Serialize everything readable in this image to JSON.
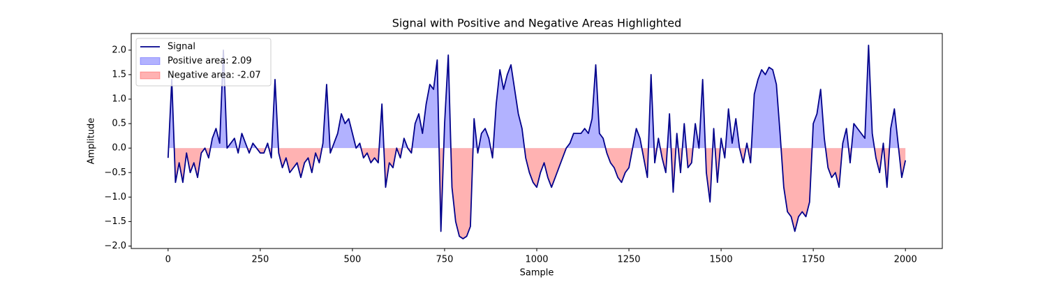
{
  "chart_data": {
    "type": "line",
    "title": "Signal with Positive and Negative Areas Highlighted",
    "x_label": "Sample",
    "y_label": "Amplitude",
    "x": [
      0,
      10,
      20,
      30,
      40,
      50,
      60,
      70,
      80,
      90,
      100,
      110,
      120,
      130,
      140,
      150,
      160,
      170,
      180,
      190,
      200,
      210,
      220,
      230,
      240,
      250,
      260,
      270,
      280,
      290,
      300,
      310,
      320,
      330,
      340,
      350,
      360,
      370,
      380,
      390,
      400,
      410,
      420,
      430,
      440,
      450,
      460,
      470,
      480,
      490,
      500,
      510,
      520,
      530,
      540,
      550,
      560,
      570,
      580,
      590,
      600,
      610,
      620,
      630,
      640,
      650,
      660,
      670,
      680,
      690,
      700,
      710,
      720,
      730,
      740,
      750,
      760,
      770,
      780,
      790,
      800,
      810,
      820,
      830,
      840,
      850,
      860,
      870,
      880,
      890,
      900,
      910,
      920,
      930,
      940,
      950,
      960,
      970,
      980,
      990,
      1000,
      1010,
      1020,
      1030,
      1040,
      1050,
      1060,
      1070,
      1080,
      1090,
      1100,
      1110,
      1120,
      1130,
      1140,
      1150,
      1160,
      1170,
      1180,
      1190,
      1200,
      1210,
      1220,
      1230,
      1240,
      1250,
      1260,
      1270,
      1280,
      1290,
      1300,
      1310,
      1320,
      1330,
      1340,
      1350,
      1360,
      1370,
      1380,
      1390,
      1400,
      1410,
      1420,
      1430,
      1440,
      1450,
      1460,
      1470,
      1480,
      1490,
      1500,
      1510,
      1520,
      1530,
      1540,
      1550,
      1560,
      1570,
      1580,
      1590,
      1600,
      1610,
      1620,
      1630,
      1640,
      1650,
      1660,
      1670,
      1680,
      1690,
      1700,
      1710,
      1720,
      1730,
      1740,
      1750,
      1760,
      1770,
      1780,
      1790,
      1800,
      1810,
      1820,
      1830,
      1840,
      1850,
      1860,
      1870,
      1880,
      1890,
      1900,
      1910,
      1920,
      1930,
      1940,
      1950,
      1960,
      1970,
      1980,
      1990,
      2000
    ],
    "series": [
      {
        "name": "Signal",
        "color": "#00008b",
        "values": [
          -0.2,
          1.4,
          -0.7,
          -0.3,
          -0.7,
          -0.1,
          -0.5,
          -0.3,
          -0.6,
          -0.1,
          0.0,
          -0.2,
          0.2,
          0.4,
          0.1,
          2.0,
          0.0,
          0.1,
          0.2,
          -0.1,
          0.3,
          0.1,
          -0.1,
          0.1,
          0.0,
          -0.1,
          -0.1,
          0.1,
          -0.2,
          1.4,
          -0.1,
          -0.4,
          -0.2,
          -0.5,
          -0.4,
          -0.3,
          -0.6,
          -0.3,
          -0.2,
          -0.5,
          -0.1,
          -0.3,
          0.1,
          1.3,
          -0.1,
          0.1,
          0.3,
          0.7,
          0.5,
          0.6,
          0.3,
          0.0,
          0.1,
          -0.2,
          -0.1,
          -0.3,
          -0.2,
          -0.3,
          0.9,
          -0.8,
          -0.3,
          -0.4,
          0.0,
          -0.2,
          0.2,
          0.0,
          -0.1,
          0.5,
          0.7,
          0.3,
          0.9,
          1.3,
          1.2,
          1.8,
          -1.7,
          0.5,
          1.9,
          -0.8,
          -1.5,
          -1.8,
          -1.85,
          -1.8,
          -1.6,
          0.6,
          -0.1,
          0.3,
          0.4,
          0.2,
          -0.2,
          0.9,
          1.6,
          1.2,
          1.5,
          1.7,
          1.2,
          0.7,
          0.4,
          -0.2,
          -0.5,
          -0.7,
          -0.8,
          -0.5,
          -0.3,
          -0.6,
          -0.8,
          -0.6,
          -0.4,
          -0.2,
          0.0,
          0.1,
          0.3,
          0.3,
          0.3,
          0.4,
          0.3,
          0.6,
          1.7,
          0.3,
          0.2,
          -0.1,
          -0.3,
          -0.4,
          -0.6,
          -0.7,
          -0.5,
          -0.4,
          0.0,
          0.4,
          0.2,
          -0.2,
          -0.6,
          1.5,
          -0.3,
          0.2,
          -0.2,
          -0.5,
          0.7,
          -0.9,
          0.3,
          -0.5,
          0.5,
          -0.4,
          -0.3,
          0.5,
          0.0,
          1.4,
          -0.5,
          -1.1,
          0.4,
          -0.7,
          0.2,
          -0.2,
          0.8,
          0.1,
          0.6,
          0.0,
          -0.3,
          0.1,
          -0.3,
          1.1,
          1.4,
          1.6,
          1.5,
          1.65,
          1.6,
          1.3,
          0.3,
          -0.8,
          -1.3,
          -1.4,
          -1.7,
          -1.4,
          -1.3,
          -1.4,
          -1.1,
          0.5,
          0.7,
          1.2,
          0.2,
          -0.4,
          -0.6,
          -0.5,
          -0.8,
          0.1,
          0.4,
          -0.3,
          0.5,
          0.4,
          0.3,
          0.2,
          2.1,
          0.3,
          -0.2,
          -0.5,
          0.1,
          -0.8,
          0.4,
          0.8,
          0.1,
          -0.6,
          -0.25
        ]
      }
    ],
    "fills": [
      {
        "name": "Positive area: 2.09",
        "color": "#0000ff",
        "side": "positive"
      },
      {
        "name": "Negative area: -2.07",
        "color": "#ff0000",
        "side": "negative"
      }
    ],
    "fill_opacity": 0.3,
    "xlim": [
      -100,
      2100
    ],
    "xticks": [
      0,
      250,
      500,
      750,
      1000,
      1250,
      1500,
      1750,
      2000
    ],
    "ylim": [
      -2.05,
      2.34
    ],
    "yticks": [
      {
        "value": -2,
        "label": "−2.0"
      },
      {
        "value": -1.5,
        "label": "−1.5"
      },
      {
        "value": -1,
        "label": "−1.0"
      },
      {
        "value": -0.5,
        "label": "−0.5"
      },
      {
        "value": 0,
        "label": "0.0"
      },
      0.5,
      {
        "value": 1,
        "label": "1.0"
      },
      1.5,
      {
        "value": 2,
        "label": "2.0"
      }
    ],
    "legend": "upper left",
    "grid": false
  }
}
